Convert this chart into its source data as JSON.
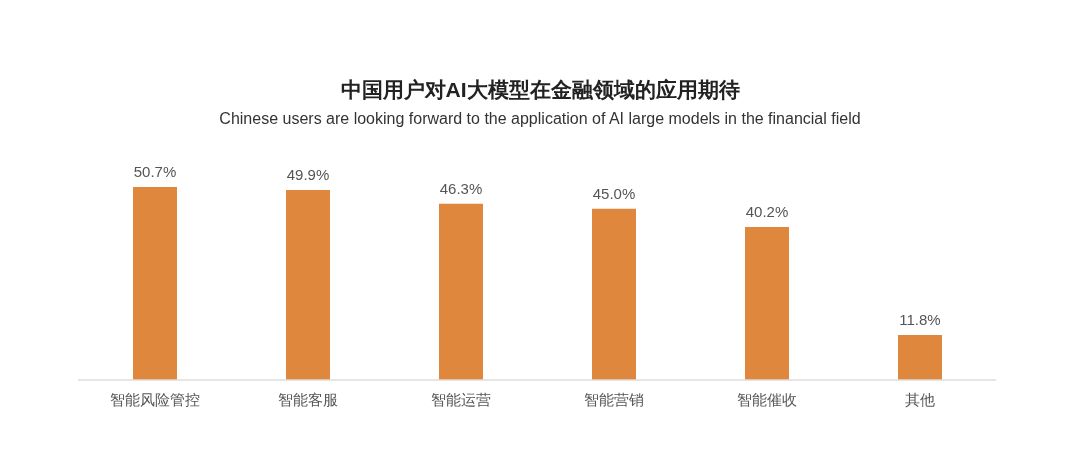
{
  "chart_data": {
    "type": "bar",
    "title": "中国用户对AI大模型在金融领域的应用期待",
    "subtitle": "Chinese users are looking forward to the application of AI large models in the financial field",
    "categories": [
      "智能风险管控",
      "智能客服",
      "智能运营",
      "智能营销",
      "智能催收",
      "其他"
    ],
    "values": [
      50.7,
      49.9,
      46.3,
      45.0,
      40.2,
      11.8
    ],
    "value_labels": [
      "50.7%",
      "49.9%",
      "46.3%",
      "45.0%",
      "40.2%",
      "11.8%"
    ],
    "color": "#e0873e"
  }
}
